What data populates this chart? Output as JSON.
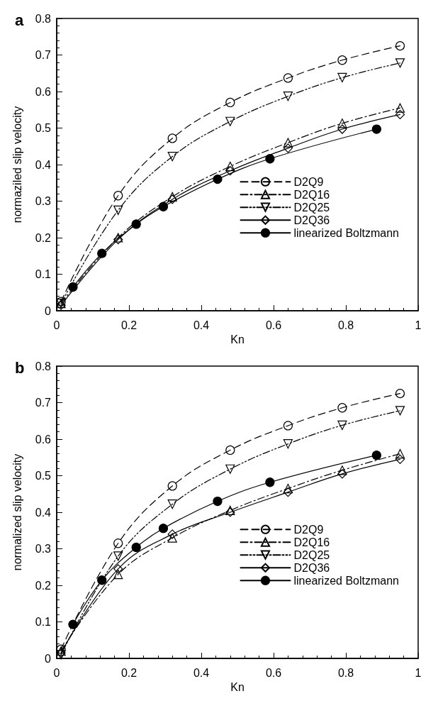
{
  "chart_data": [
    {
      "type": "line",
      "title": "a",
      "xlabel": "Kn",
      "ylabel": "normaziled slip velocity",
      "xlim": [
        0,
        1
      ],
      "xticks": [
        0,
        0.2,
        0.4,
        0.6,
        0.8,
        1
      ],
      "ylim": [
        0,
        0.8
      ],
      "yticks": [
        0,
        0.1,
        0.2,
        0.3,
        0.4,
        0.5,
        0.6,
        0.7,
        0.8
      ],
      "grid": false,
      "legend": "right",
      "series": [
        {
          "name": "D2Q9",
          "color": "#000000",
          "marker": "circle-open",
          "line_style": "dashed",
          "x": [
            0.012,
            0.17,
            0.32,
            0.48,
            0.64,
            0.79,
            0.95
          ],
          "values": [
            0.025,
            0.315,
            0.472,
            0.57,
            0.637,
            0.686,
            0.725
          ]
        },
        {
          "name": "D2Q16",
          "color": "#000000",
          "marker": "triangle-open",
          "line_style": "dashdot",
          "x": [
            0.012,
            0.17,
            0.32,
            0.48,
            0.64,
            0.79,
            0.95
          ],
          "values": [
            0.02,
            0.2,
            0.312,
            0.395,
            0.46,
            0.513,
            0.555
          ]
        },
        {
          "name": "D2Q25",
          "color": "#000000",
          "marker": "triangle-down-open",
          "line_style": "dashdotdot",
          "x": [
            0.012,
            0.17,
            0.32,
            0.48,
            0.64,
            0.79,
            0.95
          ],
          "values": [
            0.02,
            0.275,
            0.422,
            0.518,
            0.587,
            0.638,
            0.678
          ]
        },
        {
          "name": "D2Q36",
          "color": "#000000",
          "marker": "diamond-open",
          "line_style": "solid",
          "x": [
            0.012,
            0.17,
            0.32,
            0.48,
            0.64,
            0.79,
            0.95
          ],
          "values": [
            0.015,
            0.195,
            0.305,
            0.383,
            0.445,
            0.497,
            0.537
          ]
        },
        {
          "name": "linearized Boltzmann",
          "color": "#000000",
          "marker": "circle",
          "line_style": "solid",
          "x": [
            0.045,
            0.125,
            0.22,
            0.295,
            0.445,
            0.59,
            0.885
          ],
          "values": [
            0.065,
            0.157,
            0.237,
            0.285,
            0.36,
            0.416,
            0.497
          ]
        }
      ]
    },
    {
      "type": "line",
      "title": "b",
      "xlabel": "Kn",
      "ylabel": "normalized slip velocity",
      "xlim": [
        0,
        1
      ],
      "xticks": [
        0,
        0.2,
        0.4,
        0.6,
        0.8,
        1
      ],
      "ylim": [
        0,
        0.8
      ],
      "yticks": [
        0,
        0.1,
        0.2,
        0.3,
        0.4,
        0.5,
        0.6,
        0.7,
        0.8
      ],
      "grid": false,
      "legend": "right",
      "series": [
        {
          "name": "D2Q9",
          "color": "#000000",
          "marker": "circle-open",
          "line_style": "dashed",
          "x": [
            0.012,
            0.17,
            0.32,
            0.48,
            0.64,
            0.79,
            0.95
          ],
          "values": [
            0.025,
            0.315,
            0.472,
            0.57,
            0.637,
            0.686,
            0.725
          ]
        },
        {
          "name": "D2Q16",
          "color": "#000000",
          "marker": "triangle-open",
          "line_style": "dashdot",
          "x": [
            0.012,
            0.17,
            0.32,
            0.48,
            0.64,
            0.79,
            0.95
          ],
          "values": [
            0.02,
            0.23,
            0.33,
            0.405,
            0.465,
            0.515,
            0.56
          ]
        },
        {
          "name": "D2Q25",
          "color": "#000000",
          "marker": "triangle-down-open",
          "line_style": "dashdotdot",
          "x": [
            0.012,
            0.17,
            0.32,
            0.48,
            0.64,
            0.79,
            0.95
          ],
          "values": [
            0.01,
            0.28,
            0.422,
            0.518,
            0.587,
            0.638,
            0.678
          ]
        },
        {
          "name": "D2Q36",
          "color": "#000000",
          "marker": "diamond-open",
          "line_style": "solid",
          "x": [
            0.012,
            0.17,
            0.32,
            0.48,
            0.64,
            0.79,
            0.95
          ],
          "values": [
            0.015,
            0.245,
            0.34,
            0.4,
            0.455,
            0.505,
            0.545
          ]
        },
        {
          "name": "linearized Boltzmann",
          "color": "#000000",
          "marker": "circle",
          "line_style": "solid",
          "x": [
            0.045,
            0.125,
            0.22,
            0.295,
            0.445,
            0.59,
            0.885
          ],
          "values": [
            0.093,
            0.214,
            0.304,
            0.356,
            0.43,
            0.482,
            0.556
          ]
        }
      ]
    }
  ]
}
